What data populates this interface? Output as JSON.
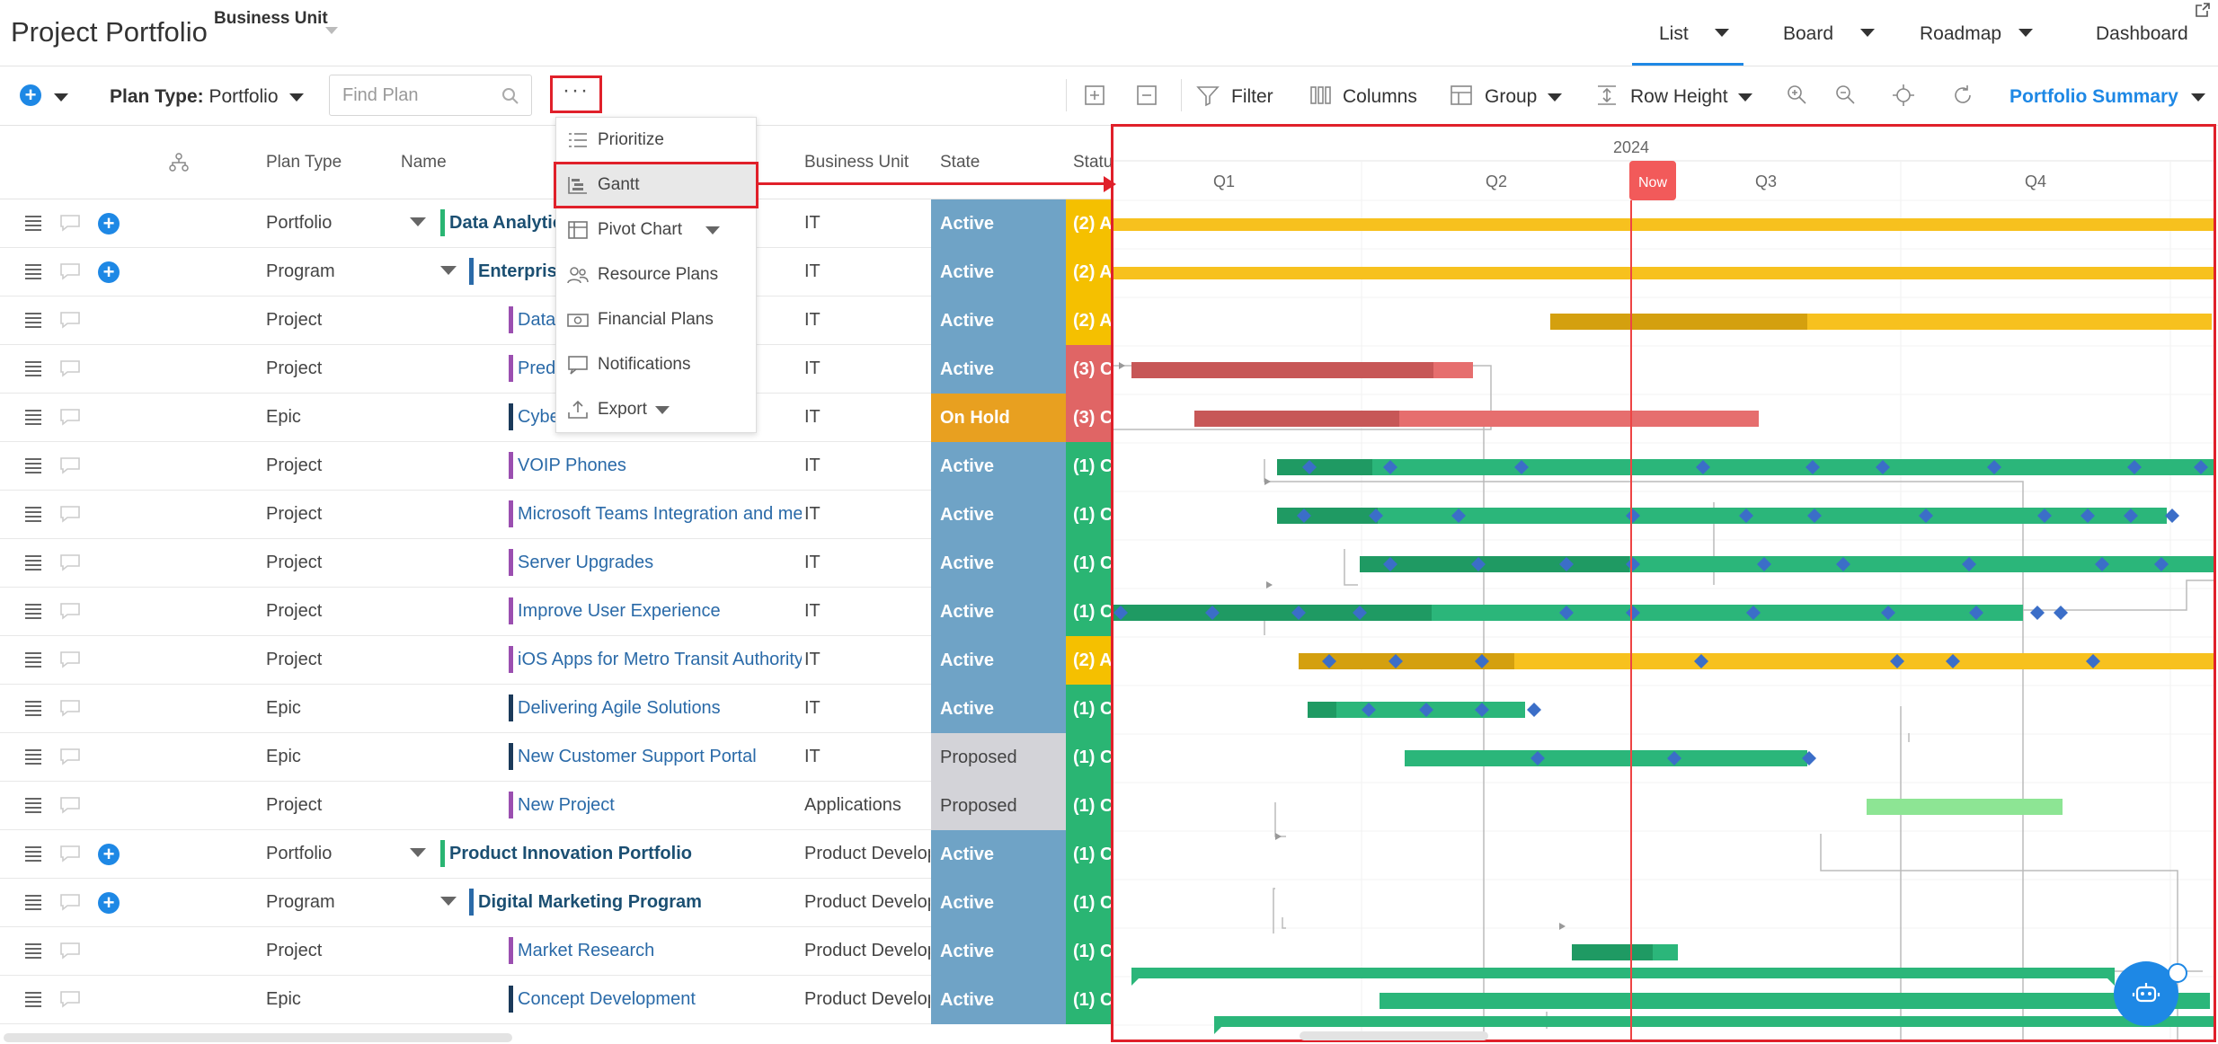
{
  "header": {
    "title": "Project Portfolio",
    "business_unit_label": "Business Unit",
    "views": [
      {
        "label": "List",
        "active": true
      },
      {
        "label": "Board"
      },
      {
        "label": "Roadmap"
      },
      {
        "label": "Dashboard"
      }
    ]
  },
  "toolbar": {
    "plan_type_label": "Plan Type:",
    "plan_type_value": "Portfolio",
    "find_placeholder": "Find Plan",
    "more_label": "···",
    "filter_label": "Filter",
    "columns_label": "Columns",
    "group_label": "Group",
    "row_height_label": "Row Height",
    "summary_label": "Portfolio Summary"
  },
  "menu": {
    "items": [
      {
        "label": "Prioritize",
        "icon": "list-icon"
      },
      {
        "label": "Gantt",
        "icon": "gantt-icon",
        "selected": true
      },
      {
        "label": "Pivot Chart",
        "icon": "pivot-icon",
        "has_submenu": true
      },
      {
        "label": "Resource Plans",
        "icon": "people-icon"
      },
      {
        "label": "Financial Plans",
        "icon": "money-icon"
      },
      {
        "label": "Notifications",
        "icon": "notification-icon"
      },
      {
        "label": "Export",
        "icon": "export-icon",
        "has_submenu": true
      }
    ]
  },
  "grid": {
    "columns": [
      "Plan Type",
      "Name",
      "Business Unit",
      "State",
      "Statu"
    ],
    "rows": [
      {
        "type": "Portfolio",
        "name": "Data Analytic",
        "bu": "IT",
        "state": "Active",
        "status": "(2) A",
        "level": 0,
        "expandable": true,
        "addable": true
      },
      {
        "type": "Program",
        "name": "Enterprise",
        "bu": "IT",
        "state": "Active",
        "status": "(2) A",
        "level": 1,
        "expandable": true,
        "addable": true
      },
      {
        "type": "Project",
        "name": "Data",
        "bu": "IT",
        "state": "Active",
        "status": "(2) A",
        "level": 2
      },
      {
        "type": "Project",
        "name": "Predi",
        "bu": "IT",
        "state": "Active",
        "status": "(3) C",
        "level": 2
      },
      {
        "type": "Epic",
        "name": "Cybe",
        "bu": "IT",
        "state": "On Hold",
        "status": "(3) C",
        "level": 2
      },
      {
        "type": "Project",
        "name": "VOIP Phones",
        "bu": "IT",
        "state": "Active",
        "status": "(1) C",
        "level": 2
      },
      {
        "type": "Project",
        "name": "Microsoft Teams Integration and me",
        "bu": "IT",
        "state": "Active",
        "status": "(1) C",
        "level": 2
      },
      {
        "type": "Project",
        "name": "Server Upgrades",
        "bu": "IT",
        "state": "Active",
        "status": "(1) C",
        "level": 2
      },
      {
        "type": "Project",
        "name": "Improve User Experience",
        "bu": "IT",
        "state": "Active",
        "status": "(1) C",
        "level": 2
      },
      {
        "type": "Project",
        "name": "iOS Apps for Metro Transit Authority",
        "bu": "IT",
        "state": "Active",
        "status": "(2) A",
        "level": 2
      },
      {
        "type": "Epic",
        "name": "Delivering Agile Solutions",
        "bu": "IT",
        "state": "Active",
        "status": "(1) C",
        "level": 2
      },
      {
        "type": "Epic",
        "name": "New Customer Support Portal",
        "bu": "IT",
        "state": "Proposed",
        "status": "(1) C",
        "level": 2
      },
      {
        "type": "Project",
        "name": "New Project",
        "bu": "Applications",
        "state": "Proposed",
        "status": "(1) C",
        "level": 2
      },
      {
        "type": "Portfolio",
        "name": "Product Innovation Portfolio",
        "bu": "Product Develop",
        "state": "Active",
        "status": "(1) C",
        "level": 0,
        "expandable": true,
        "addable": true
      },
      {
        "type": "Program",
        "name": "Digital Marketing Program",
        "bu": "Product Develop",
        "state": "Active",
        "status": "(1) C",
        "level": 1,
        "expandable": true,
        "addable": true
      },
      {
        "type": "Project",
        "name": "Market Research",
        "bu": "Product Develop",
        "state": "Active",
        "status": "(1) C",
        "level": 2
      },
      {
        "type": "Epic",
        "name": "Concept Development",
        "bu": "Product Develop",
        "state": "Active",
        "status": "(1) C",
        "level": 2
      }
    ]
  },
  "gantt": {
    "year": "2024",
    "quarters": [
      "Q1",
      "Q2",
      "Q3",
      "Q4"
    ],
    "now_label": "Now"
  },
  "colors": {
    "accent": "#1e88e5",
    "highlight_red": "#e0202a",
    "state_active": "#6fa3c6",
    "state_onhold": "#e8a020",
    "state_proposed": "#d3d3d8",
    "status_amber": "#f5c000",
    "status_red": "#e06565",
    "status_green": "#2ab573"
  }
}
